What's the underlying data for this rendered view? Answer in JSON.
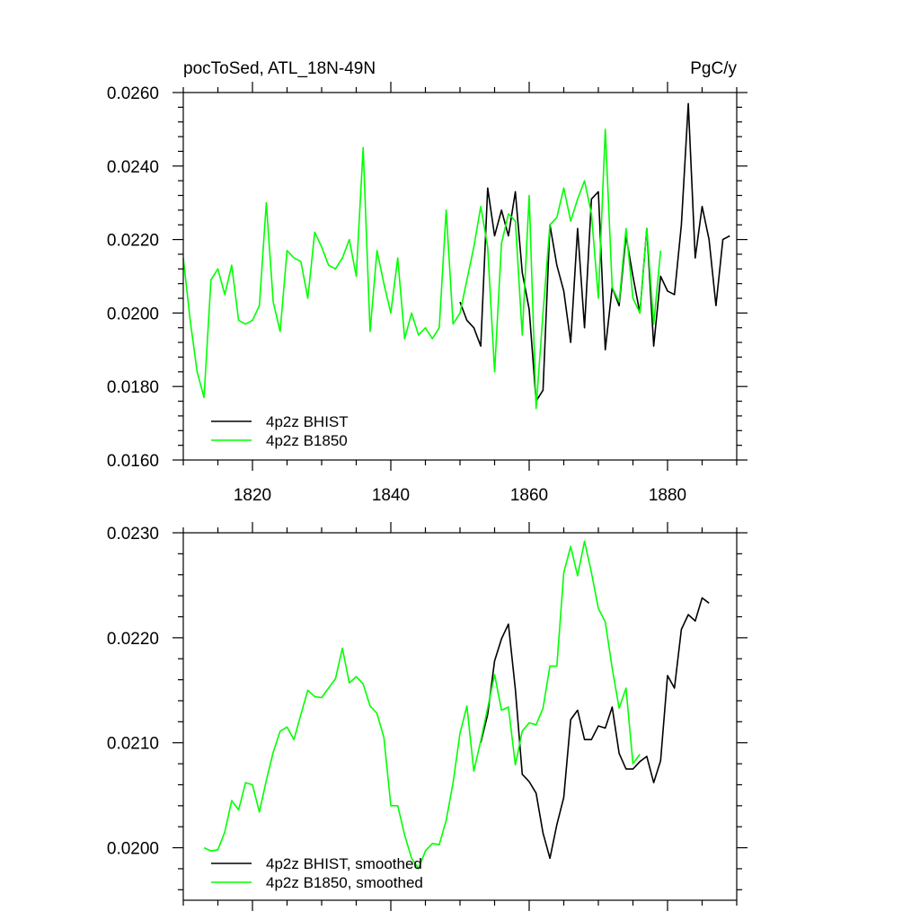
{
  "chart_data": [
    {
      "type": "line",
      "title": "pocToSed, ATL_18N-49N",
      "units": "PgC/y",
      "xlabel": "",
      "ylabel": "",
      "xlim": [
        1810,
        1890
      ],
      "ylim": [
        0.016,
        0.026
      ],
      "xticks": [
        1820,
        1840,
        1860,
        1880
      ],
      "yticks": [
        0.016,
        0.018,
        0.02,
        0.022,
        0.024,
        0.026
      ],
      "yticks_labels": [
        "0.0160",
        "0.0180",
        "0.0200",
        "0.0220",
        "0.0240",
        "0.0260"
      ],
      "xticks_labels": [
        "1820",
        "1840",
        "1860",
        "1880"
      ],
      "legend": "bottom-left",
      "series": [
        {
          "name": "4p2z BHIST",
          "color": "#000000",
          "x": [
            1850,
            1851,
            1852,
            1853,
            1854,
            1855,
            1856,
            1857,
            1858,
            1859,
            1860,
            1861,
            1862,
            1863,
            1864,
            1865,
            1866,
            1867,
            1868,
            1869,
            1870,
            1871,
            1872,
            1873,
            1874,
            1875,
            1876,
            1877,
            1878,
            1879,
            1880,
            1881,
            1882,
            1883,
            1884,
            1885,
            1886,
            1887,
            1888,
            1889
          ],
          "y": [
            0.0203,
            0.0198,
            0.0196,
            0.0191,
            0.0234,
            0.0221,
            0.0228,
            0.0221,
            0.0233,
            0.0211,
            0.0201,
            0.0176,
            0.0179,
            0.0224,
            0.0213,
            0.0206,
            0.0192,
            0.0223,
            0.0196,
            0.0231,
            0.0233,
            0.019,
            0.0207,
            0.0202,
            0.0221,
            0.021,
            0.02,
            0.0223,
            0.0191,
            0.021,
            0.0206,
            0.0205,
            0.0224,
            0.0257,
            0.0215,
            0.0229,
            0.022,
            0.0202,
            0.022,
            0.0221
          ]
        },
        {
          "name": "4p2z B1850",
          "color": "#00ff00",
          "x": [
            1810,
            1811,
            1812,
            1813,
            1814,
            1815,
            1816,
            1817,
            1818,
            1819,
            1820,
            1821,
            1822,
            1823,
            1824,
            1825,
            1826,
            1827,
            1828,
            1829,
            1830,
            1831,
            1832,
            1833,
            1834,
            1835,
            1836,
            1837,
            1838,
            1839,
            1840,
            1841,
            1842,
            1843,
            1844,
            1845,
            1846,
            1847,
            1848,
            1849,
            1850,
            1851,
            1852,
            1853,
            1854,
            1855,
            1856,
            1857,
            1858,
            1859,
            1860,
            1861,
            1862,
            1863,
            1864,
            1865,
            1866,
            1867,
            1868,
            1869,
            1870,
            1871,
            1872,
            1873,
            1874,
            1875,
            1876,
            1877,
            1878,
            1879
          ],
          "y": [
            0.0215,
            0.0198,
            0.0184,
            0.0177,
            0.0209,
            0.0212,
            0.0205,
            0.0213,
            0.0198,
            0.0197,
            0.0198,
            0.0202,
            0.023,
            0.0203,
            0.0195,
            0.0217,
            0.0215,
            0.0214,
            0.0204,
            0.0222,
            0.0218,
            0.0213,
            0.0212,
            0.0215,
            0.022,
            0.021,
            0.0245,
            0.0195,
            0.0217,
            0.0208,
            0.02,
            0.0215,
            0.0193,
            0.02,
            0.0194,
            0.0196,
            0.0193,
            0.0196,
            0.0228,
            0.0197,
            0.02,
            0.0209,
            0.0218,
            0.0229,
            0.0218,
            0.0184,
            0.0219,
            0.0227,
            0.0225,
            0.0194,
            0.0232,
            0.0174,
            0.02,
            0.0224,
            0.0226,
            0.0234,
            0.0225,
            0.0231,
            0.0236,
            0.0227,
            0.0204,
            0.025,
            0.0207,
            0.0203,
            0.0223,
            0.0204,
            0.02,
            0.0223,
            0.0197,
            0.0217
          ]
        }
      ]
    },
    {
      "type": "line",
      "title": "",
      "xlabel": "",
      "ylabel": "",
      "xlim": [
        1810,
        1890
      ],
      "ylim": [
        0.0195,
        0.023
      ],
      "xticks": [
        1820,
        1840,
        1860,
        1880
      ],
      "yticks": [
        0.02,
        0.021,
        0.022,
        0.023
      ],
      "yticks_labels": [
        "0.0200",
        "0.0210",
        "0.0220",
        "0.0230"
      ],
      "legend": "bottom-left",
      "series": [
        {
          "name": "4p2z BHIST, smoothed",
          "color": "#000000",
          "x": [
            1853,
            1854,
            1855,
            1856,
            1857,
            1858,
            1859,
            1860,
            1861,
            1862,
            1863,
            1864,
            1865,
            1866,
            1867,
            1868,
            1869,
            1870,
            1871,
            1872,
            1873,
            1874,
            1875,
            1876,
            1877,
            1878,
            1879,
            1880,
            1881,
            1882,
            1883,
            1884,
            1885,
            1886
          ],
          "y": [
            0.021,
            0.02127,
            0.02178,
            0.02199,
            0.02213,
            0.02151,
            0.0207,
            0.02063,
            0.02052,
            0.02014,
            0.0199,
            0.02022,
            0.02048,
            0.02122,
            0.02131,
            0.02103,
            0.02103,
            0.02116,
            0.02114,
            0.02134,
            0.0209,
            0.02075,
            0.02075,
            0.02082,
            0.02087,
            0.02062,
            0.02083,
            0.02164,
            0.02152,
            0.02208,
            0.02222,
            0.02216,
            0.02238,
            0.02233
          ]
        },
        {
          "name": "4p2z B1850, smoothed",
          "color": "#00ff00",
          "x": [
            1813,
            1814,
            1815,
            1816,
            1817,
            1818,
            1819,
            1820,
            1821,
            1822,
            1823,
            1824,
            1825,
            1826,
            1827,
            1828,
            1829,
            1830,
            1831,
            1832,
            1833,
            1834,
            1835,
            1836,
            1837,
            1838,
            1839,
            1840,
            1841,
            1842,
            1843,
            1844,
            1845,
            1846,
            1847,
            1848,
            1849,
            1850,
            1851,
            1852,
            1853,
            1854,
            1855,
            1856,
            1857,
            1858,
            1859,
            1860,
            1861,
            1862,
            1863,
            1864,
            1865,
            1866,
            1867,
            1868,
            1869,
            1870,
            1871,
            1872,
            1873,
            1874,
            1875,
            1876
          ],
          "y": [
            0.02,
            0.01997,
            0.01998,
            0.02015,
            0.02045,
            0.02036,
            0.02062,
            0.0206,
            0.02034,
            0.02064,
            0.02091,
            0.02111,
            0.02115,
            0.02103,
            0.02127,
            0.0215,
            0.02144,
            0.02143,
            0.02152,
            0.02161,
            0.0219,
            0.02157,
            0.02163,
            0.02156,
            0.02135,
            0.02128,
            0.02105,
            0.0204,
            0.0204,
            0.02012,
            0.0199,
            0.0198,
            0.01997,
            0.02004,
            0.02003,
            0.02026,
            0.02062,
            0.02109,
            0.02135,
            0.02073,
            0.02102,
            0.02133,
            0.02165,
            0.02131,
            0.02134,
            0.02079,
            0.02111,
            0.02119,
            0.02117,
            0.02133,
            0.02173,
            0.02173,
            0.02262,
            0.02287,
            0.02259,
            0.02292,
            0.02262,
            0.02228,
            0.02215,
            0.02171,
            0.02133,
            0.02152,
            0.0208,
            0.02089
          ]
        }
      ]
    }
  ]
}
